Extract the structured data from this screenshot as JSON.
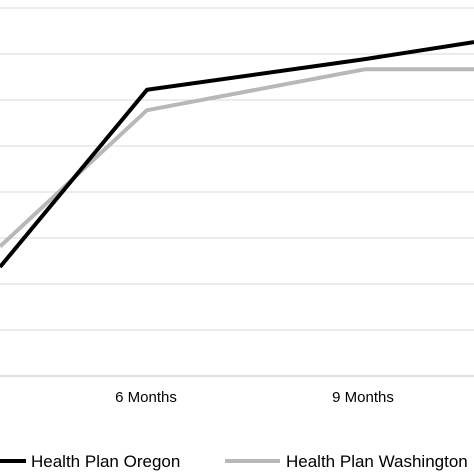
{
  "chart_data": {
    "type": "line",
    "categories": [
      "",
      "6 Months",
      "9 Months",
      ""
    ],
    "series": [
      {
        "name": "Health Plan Oregon",
        "values": [
          36,
          62,
          66.5,
          69
        ],
        "color": "#000000"
      },
      {
        "name": "Health Plan Washington",
        "values": [
          39,
          59,
          65,
          65
        ],
        "color": "#b8b8b8"
      }
    ],
    "ylim": [
      20,
      74
    ],
    "grid": true,
    "legend_position": "bottom"
  }
}
